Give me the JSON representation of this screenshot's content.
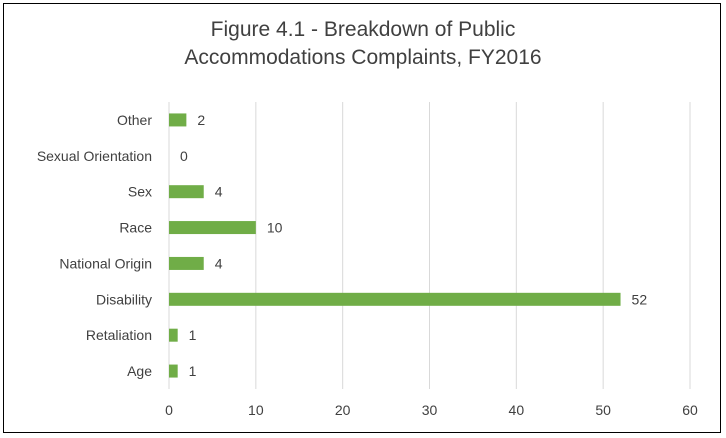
{
  "chart_data": {
    "type": "bar",
    "orientation": "horizontal",
    "title": "Figure 4.1 - Breakdown of Public Accommodations Complaints, FY2016",
    "title_lines": [
      "Figure 4.1 - Breakdown of Public",
      "Accommodations Complaints, FY2016"
    ],
    "categories": [
      "Other",
      "Sexual Orientation",
      "Sex",
      "Race",
      "National Origin",
      "Disability",
      "Retaliation",
      "Age"
    ],
    "values": [
      2,
      0,
      4,
      10,
      4,
      52,
      1,
      1
    ],
    "xlabel": "",
    "ylabel": "",
    "xlim": [
      0,
      60
    ],
    "xticks": [
      0,
      10,
      20,
      30,
      40,
      50,
      60
    ],
    "grid": true,
    "bar_color": "#70ad47",
    "grid_color": "#d9d9d9",
    "text_color": "#404040"
  }
}
